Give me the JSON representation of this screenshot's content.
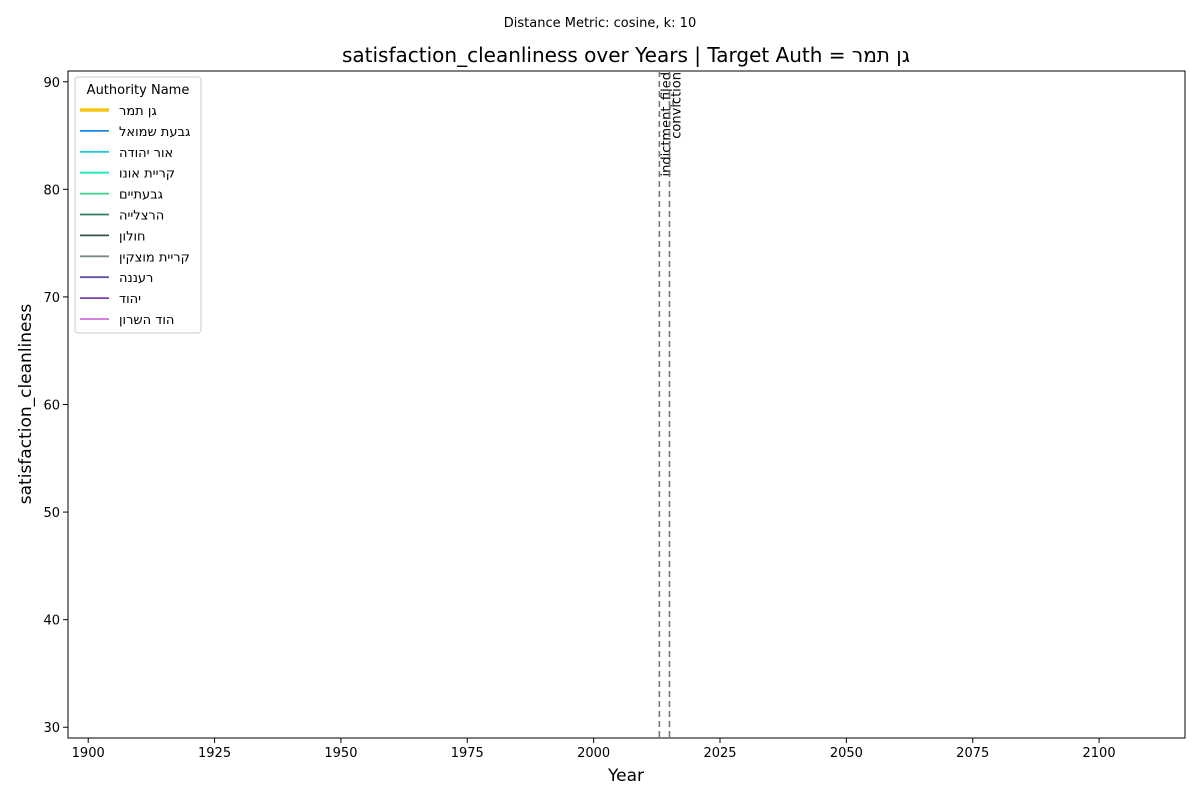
{
  "chart_data": {
    "type": "line",
    "suptitle": "Distance Metric: cosine, k: 10",
    "title": "satisfaction_cleanliness over Years | Target Auth = גן תמר",
    "xlabel": "Year",
    "ylabel": "satisfaction_cleanliness",
    "xlim": [
      1896,
      2117
    ],
    "ylim": [
      29,
      91
    ],
    "x_ticks": [
      1900,
      1925,
      1950,
      1975,
      2000,
      2025,
      2050,
      2075,
      2100
    ],
    "y_ticks": [
      30,
      40,
      50,
      60,
      70,
      80,
      90
    ],
    "grid": false,
    "legend": {
      "title": "Authority Name",
      "placement": "upper-left",
      "entries": [
        {
          "name": "גן תמר",
          "color": "#f5c518",
          "target": true
        },
        {
          "name": "גבעת שמואל",
          "color": "#1e88e5",
          "target": false
        },
        {
          "name": "אור יהודה",
          "color": "#26c6da",
          "target": false
        },
        {
          "name": "קריית אונו",
          "color": "#1de9b6",
          "target": false
        },
        {
          "name": "גבעתיים",
          "color": "#3ecf8e",
          "target": false
        },
        {
          "name": "הרצלייה",
          "color": "#2e7d5b",
          "target": false
        },
        {
          "name": "חולון",
          "color": "#37574a",
          "target": false
        },
        {
          "name": "קריית מוצקין",
          "color": "#7a8a84",
          "target": false
        },
        {
          "name": "רעננה",
          "color": "#5c52a8",
          "target": false
        },
        {
          "name": "יהוד",
          "color": "#7b3fa8",
          "target": false
        },
        {
          "name": "הוד השרון",
          "color": "#cf6fd8",
          "target": false
        }
      ]
    },
    "series": [],
    "events": [
      {
        "year": 2013,
        "label": "indictment_filed",
        "color": "#777777"
      },
      {
        "year": 2015,
        "label": "conviction",
        "color": "#777777"
      }
    ]
  }
}
